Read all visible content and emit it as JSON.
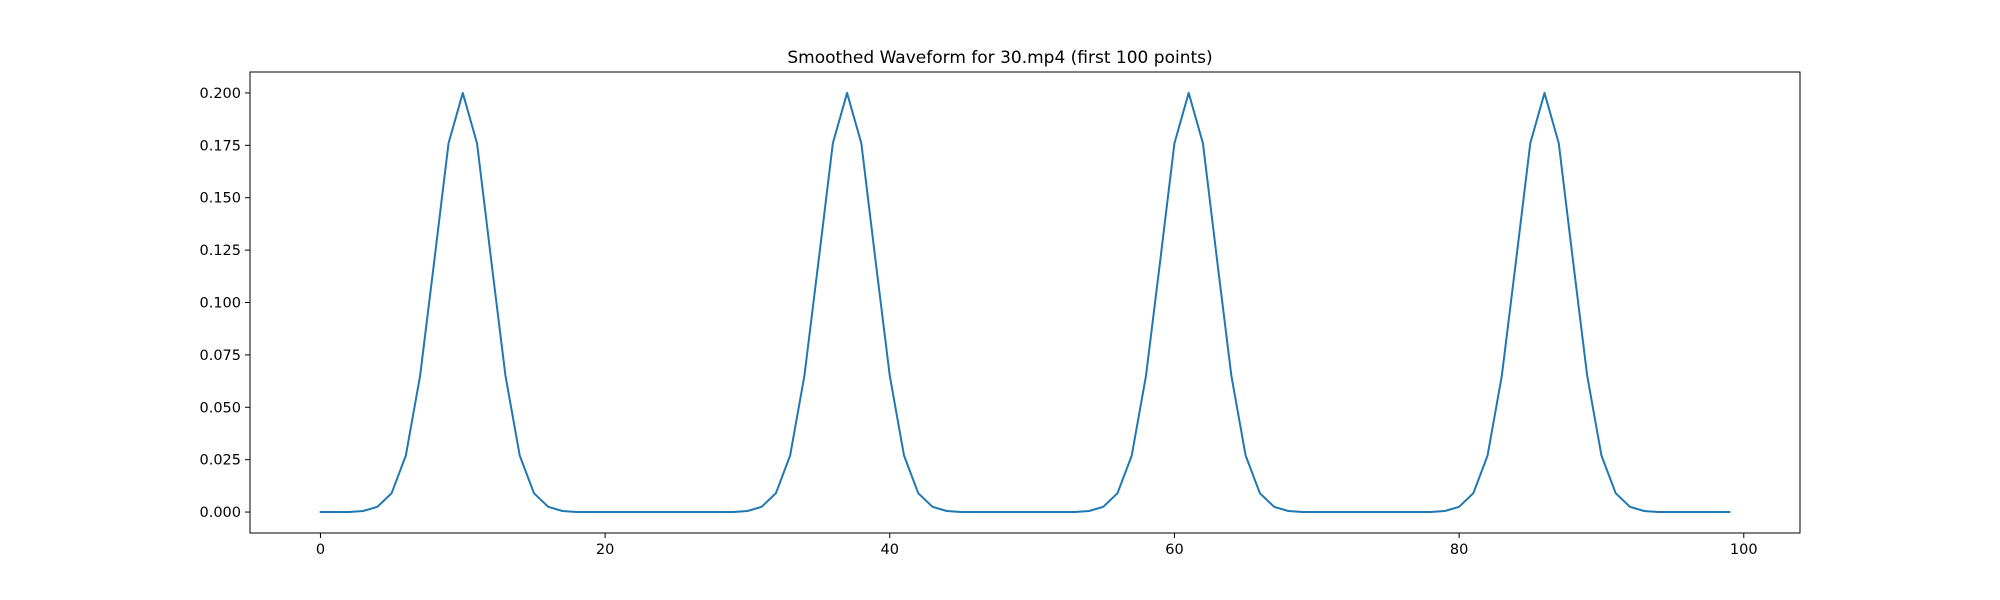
{
  "chart_data": {
    "type": "line",
    "title": "Smoothed Waveform for 30.mp4 (first 100 points)",
    "xlabel": "",
    "ylabel": "",
    "xlim": [
      -4.95,
      103.95
    ],
    "ylim": [
      -0.01,
      0.21
    ],
    "grid": false,
    "legend": "none",
    "x_ticks": [
      0,
      20,
      40,
      60,
      80,
      100
    ],
    "y_ticks": [
      0.0,
      0.025,
      0.05,
      0.075,
      0.1,
      0.125,
      0.15,
      0.175,
      0.2
    ],
    "x_tick_labels": [
      "0",
      "20",
      "40",
      "60",
      "80",
      "100"
    ],
    "y_tick_labels": [
      "0.000",
      "0.025",
      "0.050",
      "0.075",
      "0.100",
      "0.125",
      "0.150",
      "0.175",
      "0.200"
    ],
    "series": [
      {
        "color": "#1f77b4",
        "x": [
          0,
          1,
          2,
          3,
          4,
          5,
          6,
          7,
          8,
          9,
          10,
          11,
          12,
          13,
          14,
          15,
          16,
          17,
          18,
          19,
          20,
          21,
          22,
          23,
          24,
          25,
          26,
          27,
          28,
          29,
          30,
          31,
          32,
          33,
          34,
          35,
          36,
          37,
          38,
          39,
          40,
          41,
          42,
          43,
          44,
          45,
          46,
          47,
          48,
          49,
          50,
          51,
          52,
          53,
          54,
          55,
          56,
          57,
          58,
          59,
          60,
          61,
          62,
          63,
          64,
          65,
          66,
          67,
          68,
          69,
          70,
          71,
          72,
          73,
          74,
          75,
          76,
          77,
          78,
          79,
          80,
          81,
          82,
          83,
          84,
          85,
          86,
          87,
          88,
          89,
          90,
          91,
          92,
          93,
          94,
          95,
          96,
          97,
          98,
          99
        ],
        "y": [
          0.0,
          0.0,
          0.0,
          0.0005,
          0.0025,
          0.009,
          0.027,
          0.065,
          0.12,
          0.176,
          0.2,
          0.176,
          0.12,
          0.065,
          0.027,
          0.009,
          0.0025,
          0.0005,
          0.0,
          0.0,
          0.0,
          0.0,
          0.0,
          0.0,
          0.0,
          0.0,
          0.0,
          0.0,
          0.0,
          0.0,
          0.0005,
          0.0025,
          0.009,
          0.027,
          0.065,
          0.12,
          0.176,
          0.2,
          0.176,
          0.12,
          0.065,
          0.027,
          0.009,
          0.0025,
          0.0005,
          0.0,
          0.0,
          0.0,
          0.0,
          0.0,
          0.0,
          0.0,
          0.0,
          0.0,
          0.0005,
          0.0025,
          0.009,
          0.027,
          0.065,
          0.12,
          0.176,
          0.2,
          0.176,
          0.12,
          0.065,
          0.027,
          0.009,
          0.0025,
          0.0005,
          0.0,
          0.0,
          0.0,
          0.0,
          0.0,
          0.0,
          0.0,
          0.0,
          0.0,
          0.0,
          0.0005,
          0.0025,
          0.009,
          0.027,
          0.065,
          0.12,
          0.176,
          0.2,
          0.176,
          0.12,
          0.065,
          0.027,
          0.009,
          0.0025,
          0.0005,
          0.0,
          0.0,
          0.0,
          0.0,
          0.0,
          0.0
        ]
      }
    ]
  }
}
